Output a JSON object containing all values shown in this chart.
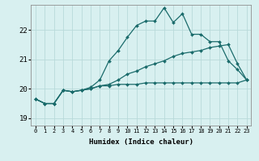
{
  "xlabel": "Humidex (Indice chaleur)",
  "bg_color": "#d8f0f0",
  "grid_color": "#b8dada",
  "line_color": "#1a6b6b",
  "xlim": [
    -0.5,
    23.5
  ],
  "ylim": [
    18.75,
    22.85
  ],
  "yticks": [
    19,
    20,
    21,
    22
  ],
  "xticks": [
    0,
    1,
    2,
    3,
    4,
    5,
    6,
    7,
    8,
    9,
    10,
    11,
    12,
    13,
    14,
    15,
    16,
    17,
    18,
    19,
    20,
    21,
    22,
    23
  ],
  "line1_y": [
    19.65,
    19.5,
    19.5,
    19.95,
    19.9,
    19.95,
    20.0,
    20.1,
    20.1,
    20.15,
    20.15,
    20.15,
    20.2,
    20.2,
    20.2,
    20.2,
    20.2,
    20.2,
    20.2,
    20.2,
    20.2,
    20.2,
    20.2,
    20.3
  ],
  "line2_y": [
    19.65,
    19.5,
    19.5,
    19.95,
    19.9,
    19.95,
    20.0,
    20.1,
    20.15,
    20.3,
    20.5,
    20.6,
    20.75,
    20.85,
    20.95,
    21.1,
    21.2,
    21.25,
    21.3,
    21.4,
    21.45,
    21.5,
    20.85,
    20.3
  ],
  "line3_y": [
    19.65,
    19.5,
    19.5,
    19.95,
    19.9,
    19.95,
    20.05,
    20.3,
    20.95,
    21.3,
    21.75,
    22.15,
    22.3,
    22.3,
    22.75,
    22.25,
    22.55,
    21.85,
    21.85,
    21.6,
    21.6,
    20.95,
    20.65,
    20.3
  ]
}
